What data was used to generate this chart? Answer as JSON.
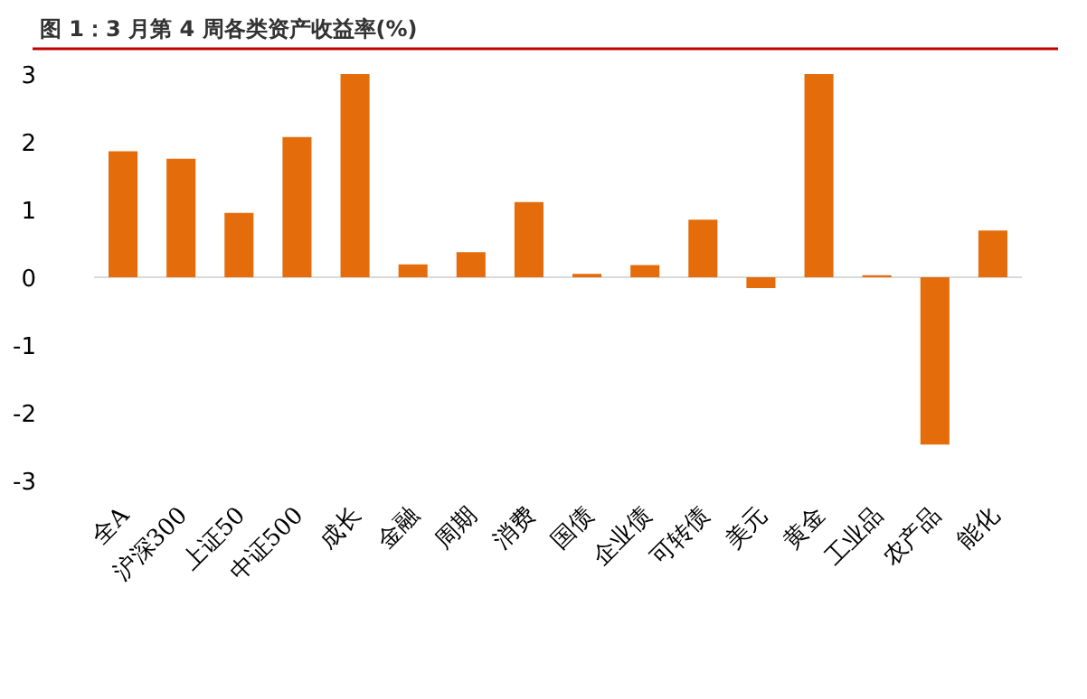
{
  "chart_data": {
    "type": "bar",
    "title": "图 1：3 月第 4 周各类资产收益率(%)",
    "categories": [
      "全A",
      "沪深300",
      "上证50",
      "中证500",
      "成长",
      "金融",
      "周期",
      "消费",
      "国债",
      "企业债",
      "可转债",
      "美元",
      "黄金",
      "工业品",
      "农产品",
      "能化"
    ],
    "values": [
      1.86,
      1.75,
      0.95,
      2.07,
      3.0,
      0.19,
      0.37,
      1.11,
      0.05,
      0.18,
      0.85,
      -0.16,
      3.0,
      0.03,
      -2.47,
      0.69
    ],
    "color": "#e46c0a",
    "ylim": [
      -3,
      3
    ],
    "yticks": [
      -3,
      -2,
      -1,
      0,
      1,
      2,
      3
    ]
  }
}
